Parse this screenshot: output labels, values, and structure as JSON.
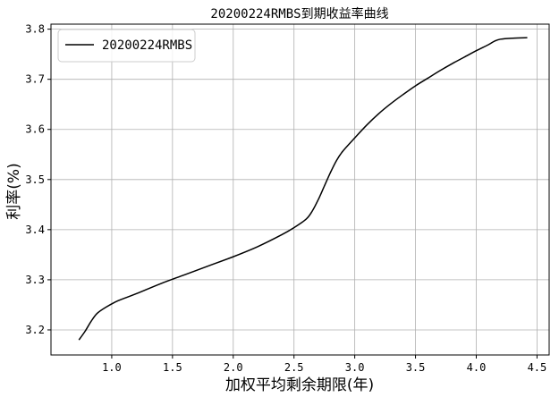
{
  "chart_data": {
    "type": "line",
    "title": "20200224RMBS到期收益率曲线",
    "xlabel": "加权平均剩余期限(年)",
    "ylabel": "利率(%)",
    "xlim": [
      0.5,
      4.6
    ],
    "ylim": [
      3.15,
      3.81
    ],
    "xticks": [
      1.0,
      1.5,
      2.0,
      2.5,
      3.0,
      3.5,
      4.0,
      4.5
    ],
    "xtick_labels": [
      "1.0",
      "1.5",
      "2.0",
      "2.5",
      "3.0",
      "3.5",
      "4.0",
      "4.5"
    ],
    "yticks": [
      3.2,
      3.3,
      3.4,
      3.5,
      3.6,
      3.7,
      3.8
    ],
    "ytick_labels": [
      "3.2",
      "3.3",
      "3.4",
      "3.5",
      "3.6",
      "3.7",
      "3.8"
    ],
    "grid": true,
    "legend": "top-left",
    "series": [
      {
        "name": "20200224RMBS",
        "color": "#000000",
        "x": [
          0.73,
          0.78,
          0.83,
          0.88,
          0.95,
          1.05,
          1.2,
          1.4,
          1.6,
          1.8,
          2.0,
          2.2,
          2.4,
          2.5,
          2.6,
          2.65,
          2.7,
          2.75,
          2.8,
          2.85,
          2.9,
          3.0,
          3.1,
          3.2,
          3.3,
          3.4,
          3.5,
          3.6,
          3.7,
          3.8,
          3.9,
          4.0,
          4.1,
          4.15,
          4.2,
          4.3,
          4.42
        ],
        "y": [
          3.18,
          3.197,
          3.217,
          3.233,
          3.245,
          3.258,
          3.272,
          3.292,
          3.31,
          3.328,
          3.346,
          3.366,
          3.39,
          3.404,
          3.421,
          3.437,
          3.46,
          3.487,
          3.514,
          3.538,
          3.556,
          3.583,
          3.609,
          3.632,
          3.652,
          3.67,
          3.687,
          3.702,
          3.717,
          3.731,
          3.744,
          3.757,
          3.769,
          3.776,
          3.78,
          3.782,
          3.783
        ]
      }
    ]
  }
}
